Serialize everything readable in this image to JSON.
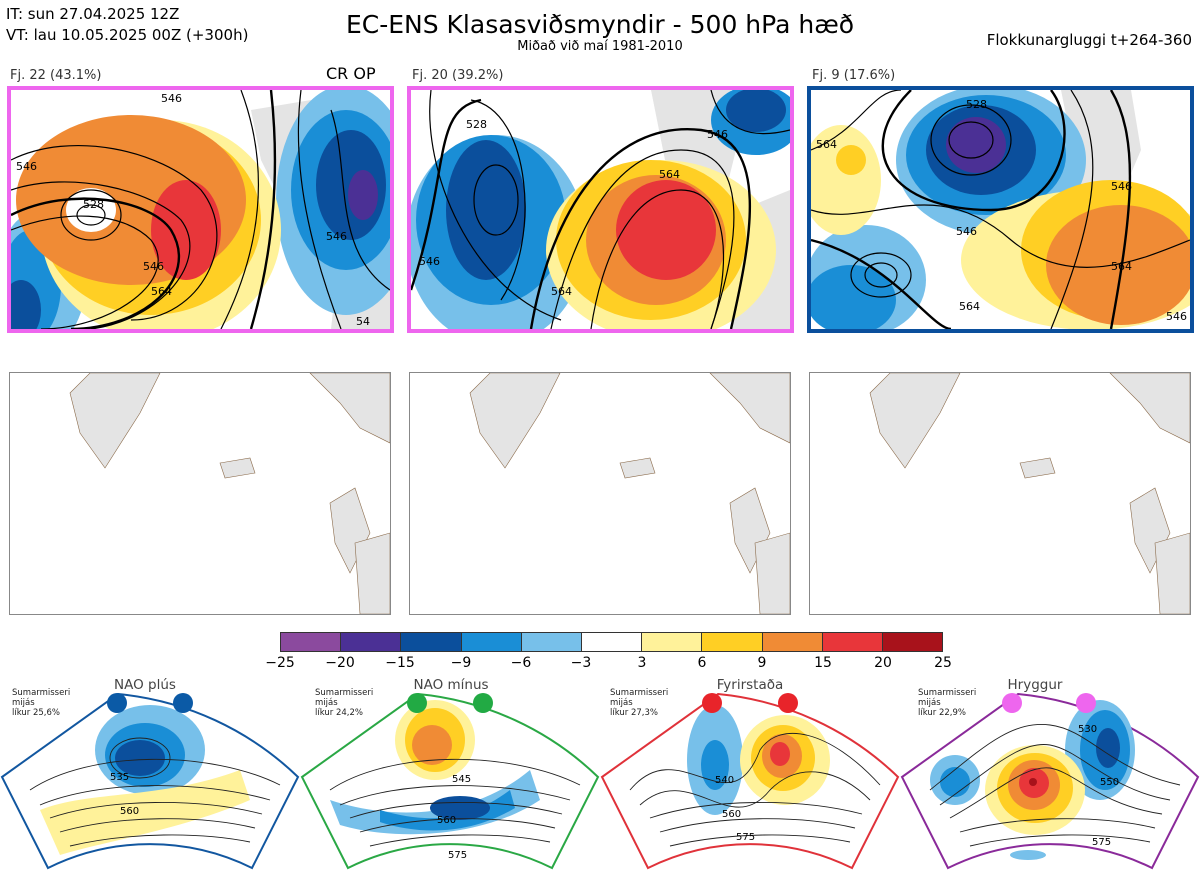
{
  "header": {
    "it_line": "IT: sun 27.04.2025 12Z",
    "vt_line": "VT: lau 10.05.2025 00Z  (+300h)",
    "title": "EC-ENS Klasasviðsmyndir - 500 hPa hæð",
    "subtitle": "Miðað við maí 1981-2010",
    "window": "Flokkunargluggi t+264-360"
  },
  "clusters": [
    {
      "label": "Fj. 22 (43.1%)",
      "tag": "CR OP",
      "border_color": "#ee66ee"
    },
    {
      "label": "Fj. 20 (39.2%)",
      "tag": "",
      "border_color": "#ee66ee"
    },
    {
      "label": "Fj. 9 (17.6%)",
      "tag": "",
      "border_color": "#0b4f9c"
    }
  ],
  "contour_labels": {
    "p1": [
      "528",
      "546",
      "546",
      "546",
      "564",
      "546",
      "54"
    ],
    "p2": [
      "528",
      "546",
      "564",
      "546",
      "564"
    ],
    "p3": [
      "528",
      "564",
      "546",
      "546",
      "564",
      "564",
      "546"
    ]
  },
  "colorbar": {
    "ticks": [
      "−25",
      "−20",
      "−15",
      "−9",
      "−6",
      "−3",
      "3",
      "6",
      "9",
      "15",
      "20",
      "25"
    ],
    "colors": [
      "#8b4a9e",
      "#4b3095",
      "#0b4f9c",
      "#1a8ed6",
      "#77c0ea",
      "#ffffff",
      "#fff29a",
      "#ffcf24",
      "#f08b35",
      "#e8363a",
      "#a8121b"
    ]
  },
  "regimes": [
    {
      "name": "NAO plús",
      "season": "Sumarmisseri",
      "pattern_label": "mijás",
      "prob": "líkur 25,6%",
      "dot_color": "#0b5aa6",
      "border_color": "#1257a0",
      "labels": [
        "535",
        "560"
      ]
    },
    {
      "name": "NAO mínus",
      "season": "Sumarmisseri",
      "pattern_label": "mijás",
      "prob": "líkur 24,2%",
      "dot_color": "#22aa44",
      "border_color": "#2aa845",
      "labels": [
        "545",
        "560",
        "575"
      ]
    },
    {
      "name": "Fyrirstaða",
      "season": "Sumarmisseri",
      "pattern_label": "mijás",
      "prob": "líkur 27,3%",
      "dot_color": "#e8242a",
      "border_color": "#e0323a",
      "labels": [
        "540",
        "560",
        "575"
      ]
    },
    {
      "name": "Hryggur",
      "season": "Sumarmisseri",
      "pattern_label": "mijás",
      "prob": "líkur 22,9%",
      "dot_color": "#ee66ee",
      "border_color": "#8a2a9a",
      "labels": [
        "530",
        "550",
        "575"
      ]
    }
  ]
}
